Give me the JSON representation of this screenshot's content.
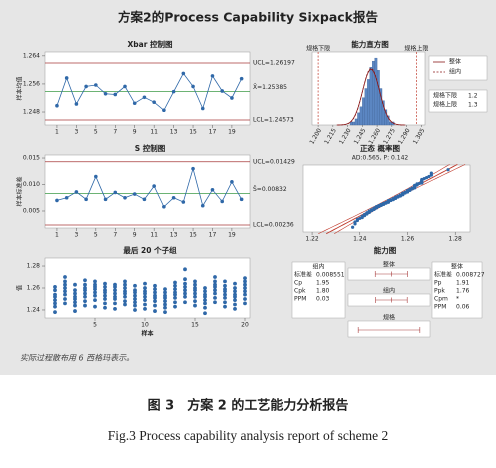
{
  "title": "方案2的Process Capability Sixpack报告",
  "footnote": "实际过程散布用 6 西格玛表示。",
  "caption_zh": "图 3　方案 2 的工艺能力分析报告",
  "caption_en": "Fig.3 Process capability analysis report of scheme 2",
  "chart_data": [
    {
      "type": "control",
      "title": "Xbar 控制图",
      "y_label": "样本均值",
      "x": [
        1,
        2,
        3,
        4,
        5,
        6,
        7,
        8,
        9,
        10,
        11,
        12,
        13,
        14,
        15,
        16,
        17,
        18,
        19,
        20
      ],
      "values": [
        1.2498,
        1.2577,
        1.2503,
        1.2553,
        1.2557,
        1.2532,
        1.253,
        1.2553,
        1.2505,
        1.2522,
        1.2508,
        1.2485,
        1.2538,
        1.259,
        1.2553,
        1.249,
        1.2583,
        1.254,
        1.252,
        1.2575
      ],
      "xlim": [
        -0.23,
        20.86
      ],
      "xticks": [
        1,
        3,
        5,
        7,
        9,
        11,
        13,
        15,
        17,
        19
      ],
      "ylim": [
        1.2443,
        1.2651
      ],
      "yticks": [
        1.248,
        1.256,
        1.264
      ],
      "ucl": {
        "value": 1.26197,
        "label": "UCL=1.26197"
      },
      "center": {
        "value": 1.25385,
        "label": "X̄=1.25385"
      },
      "lcl": {
        "value": 1.24573,
        "label": "LCL=1.24573"
      },
      "color": "#2f68a8",
      "limit_color": "#a83a3a",
      "center_color": "#3c9a46"
    },
    {
      "type": "histogram",
      "title": "能力直方图",
      "bins": [
        1.2325,
        1.235,
        1.2375,
        1.24,
        1.2425,
        1.245,
        1.2475,
        1.25,
        1.2525,
        1.255,
        1.2575,
        1.26,
        1.2625,
        1.265,
        1.2675,
        1.27,
        1.2725,
        1.275,
        1.2775,
        1.28,
        1.2825
      ],
      "counts": [
        1,
        1,
        2,
        4,
        6,
        9,
        12,
        15,
        19,
        21,
        22,
        18,
        12,
        8,
        5,
        3,
        1,
        1,
        0,
        0
      ],
      "xlim": [
        1.1938,
        1.3087
      ],
      "xticks": [
        {
          "value": 1.2,
          "label": "1.200"
        },
        {
          "value": 1.215,
          "label": "1.215"
        },
        {
          "value": 1.23,
          "label": "1.230"
        },
        {
          "value": 1.245,
          "label": "1.245"
        },
        {
          "value": 1.26,
          "label": "1.260"
        },
        {
          "value": 1.275,
          "label": "1.275"
        },
        {
          "value": 1.29,
          "label": "1.290"
        },
        {
          "value": 1.305,
          "label": "1.305"
        }
      ],
      "ylim": [
        0,
        24
      ],
      "lsl": 1.2,
      "usl": 1.3,
      "spec_labels": [
        "规格下限",
        "规格上限"
      ],
      "legend": [
        "整体",
        "组内"
      ],
      "color": "#5b86c2",
      "curve_color": "#8b1a1a",
      "spec_color": "#c0392b"
    },
    {
      "type": "control",
      "title": "S 控制图",
      "y_label": "样本标准差",
      "x": [
        1,
        2,
        3,
        4,
        5,
        6,
        7,
        8,
        9,
        10,
        11,
        12,
        13,
        14,
        15,
        16,
        17,
        18,
        19,
        20
      ],
      "values": [
        0.007,
        0.0075,
        0.0086,
        0.0072,
        0.0115,
        0.0072,
        0.0085,
        0.0075,
        0.0082,
        0.0072,
        0.0097,
        0.0058,
        0.0075,
        0.0067,
        0.013,
        0.006,
        0.009,
        0.0068,
        0.0105,
        0.0072
      ],
      "xlim": [
        -0.23,
        20.86
      ],
      "xticks": [
        1,
        3,
        5,
        7,
        9,
        11,
        13,
        15,
        17,
        19
      ],
      "ylim": [
        0.00179,
        0.01557
      ],
      "yticks": [
        {
          "value": 0.005,
          "label": "0.005"
        },
        {
          "value": 0.01,
          "label": "0.010"
        },
        {
          "value": 0.015,
          "label": "0.015"
        }
      ],
      "ucl": {
        "value": 0.01429,
        "label": "UCL=0.01429"
      },
      "center": {
        "value": 0.00832,
        "label": "S̄=0.00832"
      },
      "lcl": {
        "value": 0.00236,
        "label": "LCL=0.00236"
      },
      "color": "#2f68a8",
      "limit_color": "#a83a3a",
      "center_color": "#3c9a46"
    },
    {
      "type": "probability",
      "title": "正态 概率图",
      "subtitle": "AD:0.565, P: 0.142",
      "xlim": [
        1.2162,
        1.2862
      ],
      "xticks": [
        1.22,
        1.24,
        1.26,
        1.28
      ],
      "ylim": [
        0.1,
        99.9
      ],
      "color": "#2f68a8",
      "line_color": "#c0392b"
    },
    {
      "type": "strip",
      "title": "最后 20 个子组",
      "x_label": "样本",
      "y_label": "值",
      "x": [
        1,
        2,
        3,
        4,
        5,
        6,
        7,
        8,
        9,
        10,
        11,
        12,
        13,
        14,
        15,
        16,
        17,
        18,
        19,
        20
      ],
      "groups": [
        [
          1.238,
          1.243,
          1.246,
          1.249,
          1.252,
          1.254,
          1.258,
          1.261
        ],
        [
          1.246,
          1.25,
          1.254,
          1.257,
          1.26,
          1.263,
          1.266,
          1.27
        ],
        [
          1.239,
          1.244,
          1.247,
          1.25,
          1.252,
          1.255,
          1.258,
          1.263
        ],
        [
          1.244,
          1.248,
          1.252,
          1.255,
          1.258,
          1.26,
          1.263,
          1.267
        ],
        [
          1.243,
          1.249,
          1.253,
          1.256,
          1.259,
          1.261,
          1.263,
          1.266
        ],
        [
          1.242,
          1.246,
          1.25,
          1.253,
          1.256,
          1.258,
          1.261,
          1.264
        ],
        [
          1.241,
          1.246,
          1.25,
          1.252,
          1.255,
          1.258,
          1.261,
          1.263
        ],
        [
          1.245,
          1.248,
          1.252,
          1.255,
          1.257,
          1.26,
          1.263,
          1.266
        ],
        [
          1.24,
          1.244,
          1.247,
          1.25,
          1.253,
          1.256,
          1.258,
          1.262
        ],
        [
          1.241,
          1.245,
          1.249,
          1.252,
          1.255,
          1.257,
          1.26,
          1.264
        ],
        [
          1.239,
          1.244,
          1.248,
          1.251,
          1.253,
          1.256,
          1.259,
          1.262
        ],
        [
          1.238,
          1.242,
          1.245,
          1.248,
          1.251,
          1.253,
          1.256,
          1.259
        ],
        [
          1.243,
          1.247,
          1.251,
          1.254,
          1.256,
          1.259,
          1.262,
          1.265
        ],
        [
          1.247,
          1.252,
          1.255,
          1.258,
          1.261,
          1.264,
          1.268,
          1.277
        ],
        [
          1.244,
          1.248,
          1.252,
          1.255,
          1.258,
          1.26,
          1.263,
          1.266
        ],
        [
          1.237,
          1.242,
          1.246,
          1.249,
          1.252,
          1.254,
          1.257,
          1.26
        ],
        [
          1.247,
          1.251,
          1.255,
          1.258,
          1.261,
          1.263,
          1.266,
          1.27
        ],
        [
          1.243,
          1.247,
          1.251,
          1.254,
          1.257,
          1.259,
          1.262,
          1.266
        ],
        [
          1.241,
          1.245,
          1.249,
          1.252,
          1.254,
          1.257,
          1.26,
          1.264
        ],
        [
          1.246,
          1.25,
          1.254,
          1.257,
          1.26,
          1.263,
          1.266,
          1.269
        ]
      ],
      "xlim": [
        0,
        20.5
      ],
      "xticks": [
        5,
        10,
        15,
        20
      ],
      "ylim": [
        1.2327,
        1.2873
      ],
      "yticks": [
        1.24,
        1.26,
        1.28
      ],
      "color": "#2f68a8"
    },
    {
      "type": "capability",
      "title": "能力图",
      "within": {
        "title": "组内",
        "stats": [
          {
            "name": "标准差",
            "value": 0.008551
          },
          {
            "name": "Cp",
            "value": 1.95
          },
          {
            "name": "Cpk",
            "value": 1.8,
            "value_label": "1.80"
          },
          {
            "name": "PPM",
            "value": 0.03
          }
        ]
      },
      "overall": {
        "title": "整体",
        "stats": [
          {
            "name": "标准差",
            "value": 0.008727
          },
          {
            "name": "Pp",
            "value": 1.91
          },
          {
            "name": "Ppk",
            "value": 1.76
          },
          {
            "name": "Cpm",
            "value": null,
            "value_label": "*"
          },
          {
            "name": "PPM",
            "value": 0.06
          }
        ]
      },
      "rows": [
        "整体",
        "组内",
        "规格"
      ],
      "xlim": [
        1.19,
        1.31
      ],
      "color": "#a83a3a"
    }
  ]
}
